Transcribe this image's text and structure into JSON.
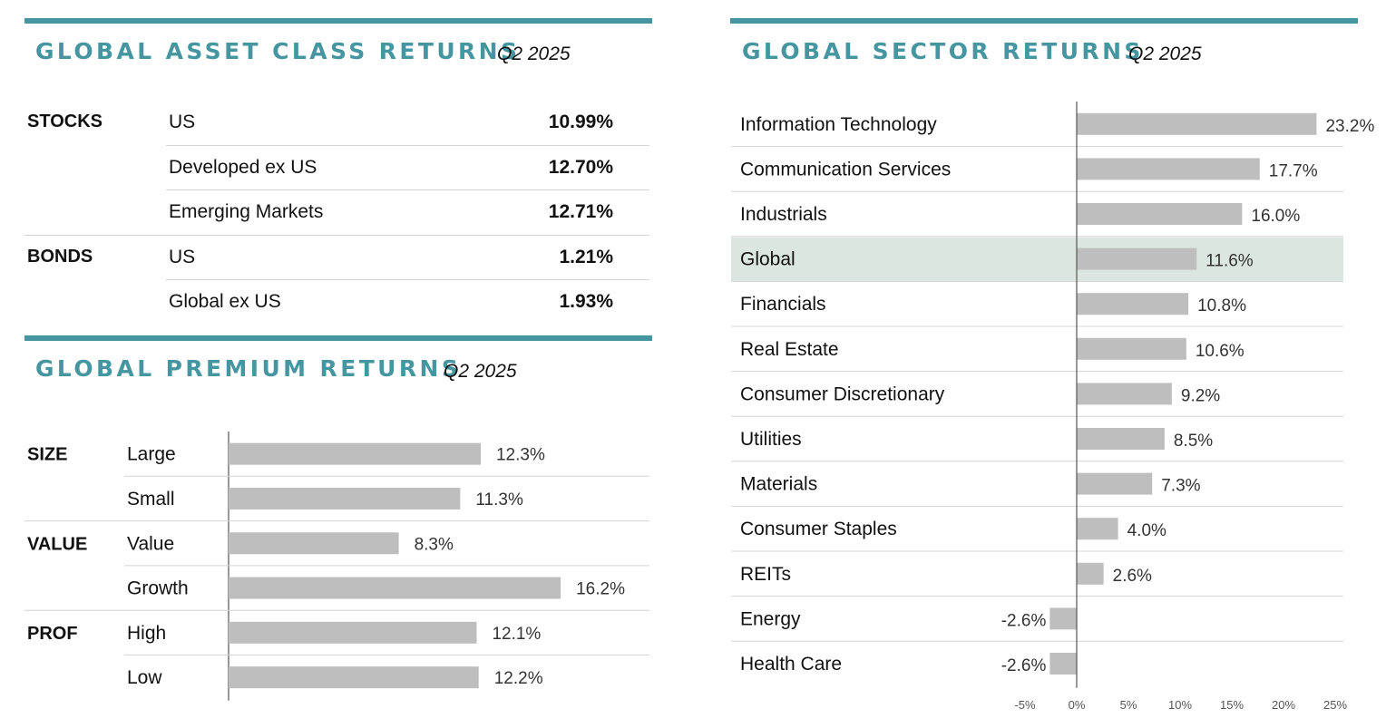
{
  "colors": {
    "accent": "#4596a0",
    "bar": "#bebebe",
    "highlight": "#dce6e1"
  },
  "asset_panel": {
    "title": "GLOBAL ASSET CLASS RETURNS",
    "quarter": "Q2 2025",
    "rows": [
      {
        "group": "STOCKS",
        "label": "US",
        "value": "10.99%"
      },
      {
        "group": "",
        "label": "Developed ex US",
        "value": "12.70%"
      },
      {
        "group": "",
        "label": "Emerging Markets",
        "value": "12.71%"
      },
      {
        "group": "BONDS",
        "label": "US",
        "value": "1.21%"
      },
      {
        "group": "",
        "label": "Global ex US",
        "value": "1.93%"
      }
    ]
  },
  "premium_panel": {
    "title": "GLOBAL PREMIUM RETURNS",
    "quarter": "Q2 2025"
  },
  "sector_panel": {
    "title": "GLOBAL SECTOR RETURNS",
    "quarter": "Q2 2025"
  },
  "chart_data": [
    {
      "type": "bar",
      "orientation": "horizontal",
      "title": "GLOBAL PREMIUM RETURNS",
      "groups": [
        "SIZE",
        "",
        "VALUE",
        "",
        "PROF",
        ""
      ],
      "categories": [
        "Large",
        "Small",
        "Value",
        "Growth",
        "High",
        "Low"
      ],
      "values": [
        12.3,
        11.3,
        8.3,
        16.2,
        12.1,
        12.2
      ],
      "value_labels": [
        "12.3%",
        "11.3%",
        "8.3%",
        "16.2%",
        "12.1%",
        "12.2%"
      ],
      "xlim": [
        0,
        20
      ]
    },
    {
      "type": "bar",
      "orientation": "horizontal",
      "title": "GLOBAL SECTOR RETURNS",
      "categories": [
        "Information Technology",
        "Communication Services",
        "Industrials",
        "Global",
        "Financials",
        "Real Estate",
        "Consumer Discretionary",
        "Utilities",
        "Materials",
        "Consumer Staples",
        "REITs",
        "Energy",
        "Health Care"
      ],
      "values": [
        23.2,
        17.7,
        16.0,
        11.6,
        10.8,
        10.6,
        9.2,
        8.5,
        7.3,
        4.0,
        2.6,
        -2.6,
        -2.6
      ],
      "value_labels": [
        "23.2%",
        "17.7%",
        "16.0%",
        "11.6%",
        "10.8%",
        "10.6%",
        "9.2%",
        "8.5%",
        "7.3%",
        "4.0%",
        "2.6%",
        "-2.6%",
        "-2.6%"
      ],
      "highlight": "Global",
      "xlim": [
        -5,
        25
      ],
      "xticks": [
        -5,
        0,
        5,
        10,
        15,
        20,
        25
      ],
      "xtick_labels": [
        "-5%",
        "0%",
        "5%",
        "10%",
        "15%",
        "20%",
        "25%"
      ]
    }
  ]
}
